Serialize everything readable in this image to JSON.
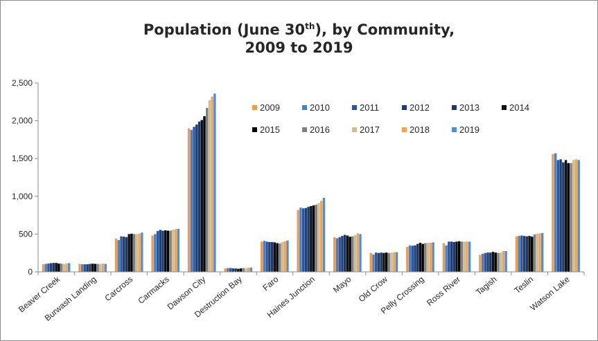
{
  "chart_data": {
    "type": "bar",
    "title_line1_prefix": "Population (June 30",
    "title_line1_sup": "th",
    "title_line1_suffix": "), by Community,",
    "title_line2": "2009 to 2019",
    "xlabel": "",
    "ylabel": "",
    "ylim": [
      0,
      2500
    ],
    "yticks": [
      0,
      500,
      1000,
      1500,
      2000,
      2500
    ],
    "ytick_labels": [
      "0",
      "500",
      "1,000",
      "1,500",
      "2,000",
      "2,500"
    ],
    "grid": false,
    "legend_position": "top-center",
    "categories": [
      "Beaver Creek",
      "Burwash Landing",
      "Carcross",
      "Carmacks",
      "Dawson City",
      "Destruction Bay",
      "Faro",
      "Haines Junction",
      "Mayo",
      "Old Crow",
      "Pelly Crossing",
      "Ross River",
      "Tagish",
      "Teslin",
      "Watson Lake"
    ],
    "series": [
      {
        "name": "2009",
        "color": "#f19a4b",
        "values": [
          100,
          105,
          440,
          480,
          1900,
          45,
          400,
          820,
          460,
          250,
          330,
          380,
          225,
          470,
          1560
        ]
      },
      {
        "name": "2010",
        "color": "#4a7fc1",
        "values": [
          105,
          100,
          420,
          500,
          1880,
          50,
          410,
          850,
          445,
          230,
          350,
          350,
          240,
          475,
          1570
        ]
      },
      {
        "name": "2011",
        "color": "#2e5597",
        "values": [
          110,
          100,
          470,
          540,
          1920,
          50,
          400,
          840,
          460,
          255,
          345,
          400,
          250,
          480,
          1480
        ]
      },
      {
        "name": "2012",
        "color": "#1f3f73",
        "values": [
          115,
          100,
          465,
          555,
          1950,
          45,
          395,
          845,
          475,
          250,
          350,
          400,
          255,
          475,
          1490
        ]
      },
      {
        "name": "2013",
        "color": "#203864",
        "values": [
          118,
          105,
          460,
          545,
          1990,
          45,
          395,
          860,
          490,
          255,
          370,
          395,
          255,
          470,
          1450
        ]
      },
      {
        "name": "2014",
        "color": "#111111",
        "values": [
          118,
          108,
          500,
          550,
          2010,
          40,
          390,
          870,
          480,
          250,
          385,
          400,
          265,
          475,
          1480
        ]
      },
      {
        "name": "2015",
        "color": "#000000",
        "values": [
          110,
          105,
          505,
          545,
          2060,
          45,
          380,
          880,
          465,
          255,
          370,
          405,
          255,
          465,
          1440
        ]
      },
      {
        "name": "2016",
        "color": "#7f7f7f",
        "values": [
          108,
          105,
          500,
          545,
          2170,
          50,
          375,
          890,
          470,
          250,
          380,
          400,
          250,
          495,
          1440
        ]
      },
      {
        "name": "2017",
        "color": "#c9bf9a",
        "values": [
          105,
          105,
          500,
          560,
          2270,
          50,
          395,
          910,
          485,
          255,
          385,
          400,
          255,
          505,
          1480
        ]
      },
      {
        "name": "2018",
        "color": "#f7a34e",
        "values": [
          110,
          108,
          505,
          565,
          2320,
          55,
          405,
          940,
          510,
          260,
          385,
          400,
          275,
          510,
          1490
        ]
      },
      {
        "name": "2019",
        "color": "#4f8fd6",
        "values": [
          115,
          105,
          520,
          570,
          2360,
          55,
          415,
          980,
          500,
          260,
          390,
          400,
          275,
          515,
          1480
        ]
      }
    ]
  }
}
